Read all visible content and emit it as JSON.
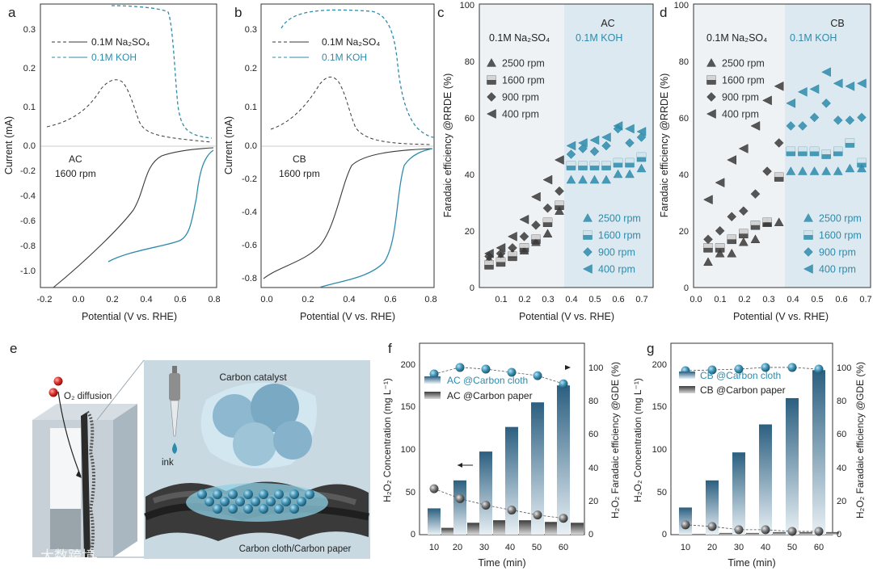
{
  "colors": {
    "black": "#3a3a3a",
    "dark": "#555555",
    "blue": "#2e8bab",
    "shade": "#ebf2f7",
    "frame": "#444444"
  },
  "panel_labels": {
    "a": "a",
    "b": "b",
    "c": "c",
    "d": "d",
    "e": "e",
    "f": "f",
    "g": "g"
  },
  "panel_a": {
    "legend": [
      "0.1M Na₂SO₄",
      "0.1M KOH"
    ],
    "annotation": [
      "AC",
      "1600 rpm"
    ],
    "xlabel": "Potential (V vs. RHE)",
    "ylabel": "Current (mA)",
    "xticks": [
      "-0.2",
      "0.0",
      "0.2",
      "0.4",
      "0.6",
      "0.8"
    ],
    "yticks": [
      "0.3",
      "0.2",
      "0.1",
      "0.0",
      "-0.2",
      "-0.4",
      "-0.6",
      "-0.8",
      "-1.0"
    ]
  },
  "panel_b": {
    "legend": [
      "0.1M Na₂SO₄",
      "0.1M KOH"
    ],
    "annotation": [
      "CB",
      "1600 rpm"
    ],
    "xlabel": "Potential (V vs. RHE)",
    "ylabel": "Current (mA)",
    "xticks": [
      "0.0",
      "0.2",
      "0.4",
      "0.6",
      "0.8"
    ],
    "yticks": [
      "0.3",
      "0.2",
      "0.1",
      "0.0",
      "-0.2",
      "-0.4",
      "-0.6",
      "-0.8"
    ]
  },
  "panel_c": {
    "title": "AC",
    "electrolytes": [
      "0.1M Na₂SO₄",
      "0.1M KOH"
    ],
    "legend_na": [
      "2500 rpm",
      "1600 rpm",
      "900 rpm",
      "400 rpm"
    ],
    "legend_koh": [
      "2500 rpm",
      "1600 rpm",
      "900 rpm",
      "400 rpm"
    ],
    "xlabel": "Potential (V vs. RHE)",
    "ylabel": "Faradaic efficiency @RRDE (%)",
    "xticks": [
      "0.1",
      "0.2",
      "0.3",
      "0.4",
      "0.5",
      "0.6",
      "0.7"
    ],
    "yticks": [
      "0",
      "20",
      "40",
      "60",
      "80",
      "100"
    ]
  },
  "panel_d": {
    "title": "CB",
    "electrolytes": [
      "0.1M Na₂SO₄",
      "0.1M KOH"
    ],
    "legend_na": [
      "2500 rpm",
      "1600 rpm",
      "900 rpm",
      "400 rpm"
    ],
    "legend_koh": [
      "2500 rpm",
      "1600 rpm",
      "900 rpm",
      "400 rpm"
    ],
    "xlabel": "Potential (V vs. RHE)",
    "ylabel": "Faradaic efficiency @RRDE (%)",
    "xticks": [
      "0.0",
      "0.1",
      "0.2",
      "0.3",
      "0.4",
      "0.5",
      "0.6",
      "0.7"
    ],
    "yticks": [
      "0",
      "20",
      "40",
      "60",
      "80",
      "100"
    ]
  },
  "panel_e": {
    "o2": "O₂ diffusion",
    "catalyst": "Carbon catalyst",
    "ink": "ink",
    "substrate": "Carbon cloth/Carbon paper"
  },
  "panel_f": {
    "legend": [
      "AC @Carbon cloth",
      "AC @Carbon paper"
    ],
    "xlabel": "Time (min)",
    "ylabel_left": "H₂O₂ Concentration (mg L⁻¹)",
    "ylabel_right": "H₂O₂ Faradaic efficiency @GDE (%)",
    "xticks": [
      "10",
      "20",
      "30",
      "40",
      "50",
      "60"
    ],
    "yticks_left": [
      "0",
      "50",
      "100",
      "150",
      "200"
    ],
    "yticks_right": [
      "0",
      "20",
      "40",
      "60",
      "80",
      "100"
    ]
  },
  "panel_g": {
    "legend": [
      "CB @Carbon cloth",
      "CB @Carbon paper"
    ],
    "xlabel": "Time (min)",
    "ylabel_left": "H₂O₂ Concentration (mg L⁻¹)",
    "ylabel_right": "H₂O₂ Faradaic efficiency @GDE (%)",
    "xticks": [
      "10",
      "20",
      "30",
      "40",
      "50",
      "60"
    ],
    "yticks_left": [
      "0",
      "50",
      "100",
      "150",
      "200"
    ],
    "yticks_right": [
      "0",
      "20",
      "40",
      "60",
      "80",
      "100"
    ]
  },
  "watermark": "大数跨境",
  "chart_data": [
    {
      "panel": "c",
      "type": "scatter",
      "x": [
        0.05,
        0.1,
        0.15,
        0.2,
        0.25,
        0.3,
        0.35,
        0.4,
        0.45,
        0.5,
        0.55,
        0.6,
        0.65,
        0.7
      ],
      "series": [
        {
          "name": "2500 rpm",
          "group": "0.1M Na₂SO₄ / 0.1M KOH",
          "values": [
            10,
            11,
            12,
            13,
            16,
            19,
            27,
            38,
            38,
            38,
            38,
            40,
            40,
            42
          ]
        },
        {
          "name": "1600 rpm",
          "values": [
            8,
            9,
            11,
            14,
            17,
            23,
            29,
            43,
            43,
            43,
            43,
            44,
            44,
            46
          ]
        },
        {
          "name": "900 rpm",
          "values": [
            11,
            12,
            14,
            18,
            22,
            28,
            34,
            47,
            49,
            48,
            50,
            56,
            51,
            53
          ]
        },
        {
          "name": "400 rpm",
          "values": [
            12,
            14,
            18,
            24,
            32,
            38,
            45,
            50,
            51,
            52,
            53,
            57,
            56,
            55
          ]
        }
      ]
    },
    {
      "panel": "d",
      "type": "scatter",
      "x": [
        0.05,
        0.1,
        0.15,
        0.2,
        0.25,
        0.3,
        0.35,
        0.4,
        0.45,
        0.5,
        0.55,
        0.6,
        0.65,
        0.7
      ],
      "series": [
        {
          "name": "2500 rpm",
          "values": [
            9,
            12,
            12,
            16,
            17,
            23,
            23,
            41,
            41,
            41,
            41,
            41,
            42,
            42
          ]
        },
        {
          "name": "1600 rpm",
          "values": [
            14,
            14,
            17,
            19,
            22,
            23,
            39,
            48,
            48,
            48,
            47,
            48,
            51,
            44
          ]
        },
        {
          "name": "900 rpm",
          "values": [
            17,
            20,
            25,
            27,
            33,
            41,
            51,
            57,
            57,
            60,
            65,
            59,
            59,
            60
          ]
        },
        {
          "name": "400 rpm",
          "values": [
            31,
            37,
            45,
            49,
            57,
            66,
            71,
            65,
            69,
            70,
            76,
            72,
            71,
            72
          ]
        }
      ]
    },
    {
      "panel": "f",
      "type": "bar",
      "categories": [
        "10",
        "20",
        "30",
        "40",
        "50",
        "60"
      ],
      "series": [
        {
          "name": "AC @Carbon cloth",
          "values": [
            31,
            64,
            98,
            127,
            156,
            176
          ]
        },
        {
          "name": "AC @Carbon paper",
          "values": [
            8,
            14,
            17,
            17,
            15,
            14
          ]
        }
      ],
      "fe_cloth": [
        98,
        102,
        101,
        99,
        97,
        92
      ],
      "fe_paper": [
        28,
        22,
        18,
        15,
        12,
        10
      ]
    },
    {
      "panel": "g",
      "type": "bar",
      "categories": [
        "10",
        "20",
        "30",
        "40",
        "50",
        "60"
      ],
      "series": [
        {
          "name": "CB @Carbon cloth",
          "values": [
            32,
            64,
            97,
            130,
            161,
            194
          ]
        },
        {
          "name": "CB @Carbon paper",
          "values": [
            1,
            2,
            2,
            3,
            3,
            3
          ]
        }
      ],
      "fe_cloth": [
        100,
        100.5,
        101,
        102,
        102,
        101
      ],
      "fe_paper": [
        6,
        5,
        3,
        3,
        2,
        2
      ]
    }
  ]
}
